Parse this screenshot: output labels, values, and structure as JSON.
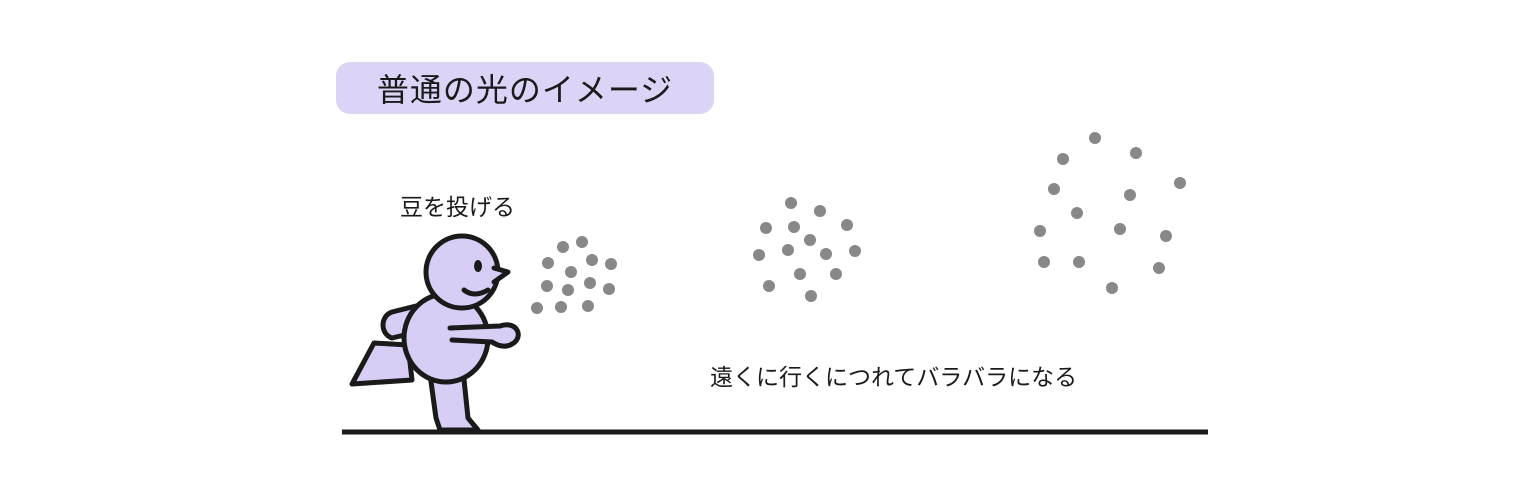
{
  "title": "普通の光のイメージ",
  "labels": {
    "throw": "豆を投げる",
    "scatter": "遠くに行くにつれてバラバラになる"
  },
  "colors": {
    "accent": "#dcd4f7",
    "figure_fill": "#d7cdf5",
    "dot": "#888888",
    "ink": "#1a1a1a"
  },
  "icons": [
    "running-person-icon"
  ]
}
